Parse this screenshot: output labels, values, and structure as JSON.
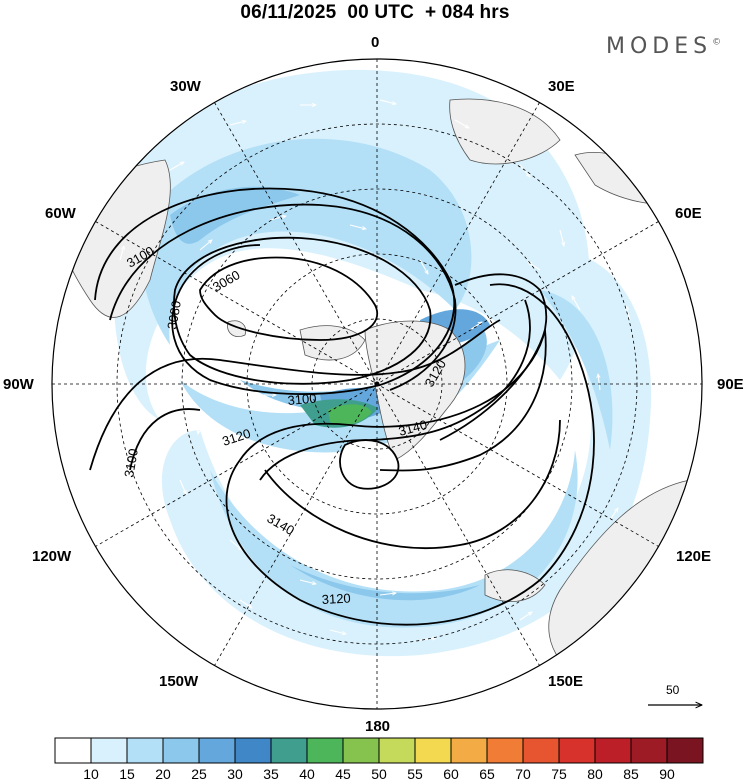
{
  "header": {
    "title": "06/11/2025  00 UTC  + 084 hrs",
    "brand": "MODES",
    "brand_mark": "©"
  },
  "map": {
    "projection": "polar-stereographic-south",
    "longitude_labels": [
      "0",
      "30E",
      "60E",
      "90E",
      "120E",
      "150E",
      "180",
      "150W",
      "120W",
      "90W",
      "60W",
      "30W"
    ],
    "contour_labels": [
      "3060",
      "3080",
      "3100",
      "3100",
      "3100",
      "3120",
      "3120",
      "3120",
      "3140",
      "3140"
    ],
    "wind_reference": {
      "value": "50"
    }
  },
  "colorbar": {
    "labels": [
      "10",
      "15",
      "20",
      "25",
      "30",
      "35",
      "40",
      "45",
      "50",
      "55",
      "60",
      "65",
      "70",
      "75",
      "80",
      "85",
      "90"
    ],
    "colors": [
      "#ffffff",
      "#d9f1fc",
      "#b3e0f7",
      "#8cc8ec",
      "#63a7dc",
      "#3f87c6",
      "#3f9e8e",
      "#4db55a",
      "#86c24e",
      "#c5d95a",
      "#f2d94f",
      "#f3ac45",
      "#f07c36",
      "#e6552f",
      "#d7322c",
      "#bd1f28",
      "#9c1b24",
      "#7a1420"
    ]
  }
}
